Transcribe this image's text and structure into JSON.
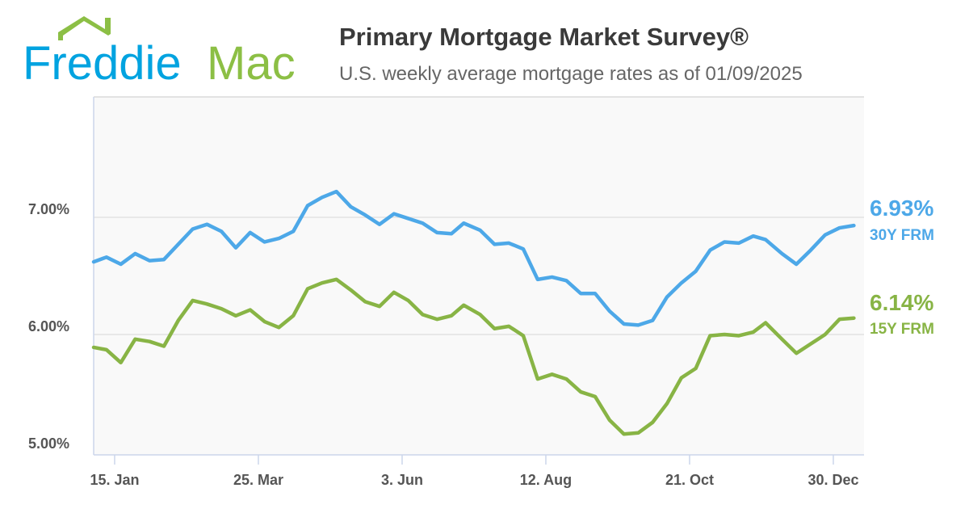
{
  "logo": {
    "text_part1": "Freddie",
    "text_part2": "Mac"
  },
  "header": {
    "title": "Primary Mortgage Market Survey®",
    "subtitle": "U.S. weekly average mortgage rates as of 01/09/2025"
  },
  "colors": {
    "frm30": "#4DA8E8",
    "frm15": "#88B445",
    "logo_blue": "#00A3E0",
    "logo_green": "#8CBF45",
    "grid": "#E2E2E2",
    "plot_bg": "#F9F9F9",
    "axis": "#CCD6EB"
  },
  "end_labels": {
    "frm30": {
      "value": "6.93%",
      "name": "30Y FRM"
    },
    "frm15": {
      "value": "6.14%",
      "name": "15Y FRM"
    }
  },
  "chart_data": {
    "type": "line",
    "title": "Primary Mortgage Market Survey®",
    "subtitle": "U.S. weekly average mortgage rates as of 01/09/2025",
    "ylim": [
      5,
      8
    ],
    "yticks": [
      5,
      6,
      7
    ],
    "ytick_labels": [
      "5.00%",
      "6.00%",
      "7.00%"
    ],
    "xticks": [
      "2024-01-15",
      "2024-03-25",
      "2024-06-03",
      "2024-08-12",
      "2024-10-21",
      "2024-12-30"
    ],
    "xtick_labels": [
      "15. Jan",
      "25. Mar",
      "3. Jun",
      "12. Aug",
      "21. Oct",
      "30. Dec"
    ],
    "grid": true,
    "x": [
      "2024-01-04",
      "2024-01-11",
      "2024-01-18",
      "2024-01-25",
      "2024-02-01",
      "2024-02-08",
      "2024-02-15",
      "2024-02-22",
      "2024-02-29",
      "2024-03-07",
      "2024-03-14",
      "2024-03-21",
      "2024-03-28",
      "2024-04-04",
      "2024-04-11",
      "2024-04-18",
      "2024-04-25",
      "2024-05-02",
      "2024-05-09",
      "2024-05-16",
      "2024-05-23",
      "2024-05-30",
      "2024-06-06",
      "2024-06-13",
      "2024-06-20",
      "2024-06-27",
      "2024-07-03",
      "2024-07-11",
      "2024-07-18",
      "2024-07-25",
      "2024-08-01",
      "2024-08-08",
      "2024-08-15",
      "2024-08-22",
      "2024-08-29",
      "2024-09-05",
      "2024-09-12",
      "2024-09-19",
      "2024-09-26",
      "2024-10-03",
      "2024-10-10",
      "2024-10-17",
      "2024-10-24",
      "2024-10-31",
      "2024-11-07",
      "2024-11-14",
      "2024-11-21",
      "2024-11-27",
      "2024-12-05",
      "2024-12-12",
      "2024-12-19",
      "2024-12-26",
      "2025-01-02",
      "2025-01-09"
    ],
    "series": [
      {
        "name": "30Y FRM",
        "key": "frm30",
        "values": [
          6.62,
          6.66,
          6.6,
          6.69,
          6.63,
          6.64,
          6.77,
          6.9,
          6.94,
          6.88,
          6.74,
          6.87,
          6.79,
          6.82,
          6.88,
          7.1,
          7.17,
          7.22,
          7.09,
          7.02,
          6.94,
          7.03,
          6.99,
          6.95,
          6.87,
          6.86,
          6.95,
          6.89,
          6.77,
          6.78,
          6.73,
          6.47,
          6.49,
          6.46,
          6.35,
          6.35,
          6.2,
          6.09,
          6.08,
          6.12,
          6.32,
          6.44,
          6.54,
          6.72,
          6.79,
          6.78,
          6.84,
          6.81,
          6.69,
          6.6,
          6.72,
          6.85,
          6.91,
          6.93
        ]
      },
      {
        "name": "15Y FRM",
        "key": "frm15",
        "values": [
          5.89,
          5.87,
          5.76,
          5.96,
          5.94,
          5.9,
          6.12,
          6.29,
          6.26,
          6.22,
          6.16,
          6.21,
          6.11,
          6.06,
          6.16,
          6.39,
          6.44,
          6.47,
          6.38,
          6.28,
          6.24,
          6.36,
          6.29,
          6.17,
          6.13,
          6.16,
          6.25,
          6.17,
          6.05,
          6.07,
          5.99,
          5.62,
          5.66,
          5.62,
          5.51,
          5.47,
          5.27,
          5.15,
          5.16,
          5.25,
          5.41,
          5.63,
          5.71,
          5.99,
          6.0,
          5.99,
          6.02,
          6.1,
          5.96,
          5.84,
          5.92,
          6.0,
          6.13,
          6.14
        ]
      }
    ]
  }
}
